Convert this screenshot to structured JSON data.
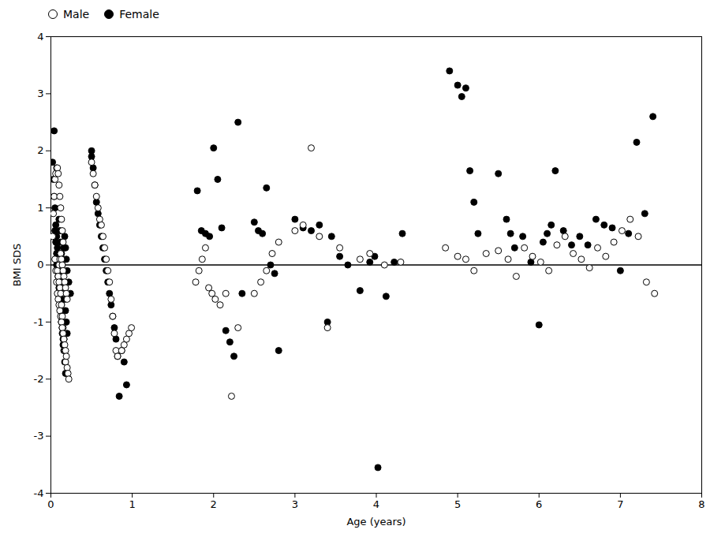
{
  "chart_data": {
    "type": "scatter",
    "xlabel": "Age (years)",
    "ylabel": "BMI SDS",
    "xlim": [
      0,
      8
    ],
    "ylim": [
      -4,
      4
    ],
    "xticks": [
      0,
      1,
      2,
      3,
      4,
      5,
      6,
      7,
      8
    ],
    "yticks": [
      -4,
      -3,
      -2,
      -1,
      0,
      1,
      2,
      3,
      4
    ],
    "hline_y": 0,
    "legend": "upper left",
    "grid": false,
    "series": [
      {
        "name": "Male",
        "color": "white",
        "marker": "circle",
        "x": [
          0.02,
          0.03,
          0.04,
          0.05,
          0.06,
          0.07,
          0.08,
          0.09,
          0.1,
          0.11,
          0.12,
          0.13,
          0.14,
          0.15,
          0.05,
          0.06,
          0.07,
          0.08,
          0.09,
          0.1,
          0.11,
          0.12,
          0.13,
          0.14,
          0.15,
          0.16,
          0.08,
          0.09,
          0.1,
          0.11,
          0.12,
          0.13,
          0.14,
          0.15,
          0.16,
          0.17,
          0.18,
          0.1,
          0.11,
          0.12,
          0.13,
          0.14,
          0.15,
          0.16,
          0.17,
          0.18,
          0.19,
          0.2,
          0.13,
          0.14,
          0.15,
          0.16,
          0.17,
          0.18,
          0.19,
          0.2,
          0.21,
          0.22,
          0.5,
          0.52,
          0.54,
          0.56,
          0.58,
          0.6,
          0.62,
          0.64,
          0.66,
          0.68,
          0.7,
          0.72,
          0.74,
          0.76,
          0.78,
          0.8,
          0.82,
          0.87,
          0.9,
          0.93,
          0.96,
          0.99,
          1.78,
          1.82,
          1.86,
          1.9,
          1.94,
          1.98,
          2.02,
          2.08,
          2.15,
          2.22,
          2.3,
          2.5,
          2.58,
          2.65,
          2.72,
          2.8,
          3.0,
          3.1,
          3.2,
          3.3,
          3.4,
          3.55,
          3.8,
          3.92,
          4.1,
          4.3,
          4.85,
          5.0,
          5.1,
          5.2,
          5.35,
          5.5,
          5.62,
          5.72,
          5.82,
          5.92,
          6.02,
          6.12,
          6.22,
          6.32,
          6.42,
          6.52,
          6.62,
          6.72,
          6.82,
          6.92,
          7.02,
          7.12,
          7.22,
          7.32,
          7.42
        ],
        "values": [
          0.5,
          0.9,
          1.2,
          1.5,
          1.6,
          1.7,
          1.7,
          1.6,
          1.4,
          1.2,
          1.0,
          0.8,
          0.6,
          0.4,
          0.1,
          -0.1,
          -0.3,
          -0.5,
          -0.6,
          -0.7,
          -0.8,
          -0.9,
          -1.0,
          -1.1,
          -1.2,
          -1.3,
          -0.1,
          -0.2,
          -0.3,
          -0.4,
          -0.5,
          -0.7,
          -0.9,
          -1.1,
          -1.3,
          -1.5,
          -1.7,
          0.0,
          0.1,
          0.2,
          0.1,
          0.0,
          -0.1,
          -0.2,
          -0.3,
          -0.4,
          -0.5,
          -0.6,
          -1.0,
          -1.1,
          -1.2,
          -1.3,
          -1.4,
          -1.5,
          -1.6,
          -1.8,
          -1.9,
          -2.0,
          1.8,
          1.6,
          1.4,
          1.2,
          1.0,
          0.8,
          0.7,
          0.5,
          0.3,
          0.1,
          -0.1,
          -0.3,
          -0.6,
          -0.9,
          -1.2,
          -1.5,
          -1.6,
          -1.5,
          -1.4,
          -1.3,
          -1.2,
          -1.1,
          -0.3,
          -0.1,
          0.1,
          0.3,
          -0.4,
          -0.5,
          -0.6,
          -0.7,
          -0.5,
          -2.3,
          -1.1,
          -0.5,
          -0.3,
          -0.1,
          0.2,
          0.4,
          0.6,
          0.7,
          2.05,
          0.5,
          -1.1,
          0.3,
          0.1,
          0.2,
          0.0,
          0.05,
          0.3,
          0.15,
          0.1,
          -0.1,
          0.2,
          0.25,
          0.1,
          -0.2,
          0.3,
          0.15,
          0.05,
          -0.1,
          0.35,
          0.5,
          0.2,
          0.1,
          -0.05,
          0.3,
          0.15,
          0.4,
          0.6,
          0.8,
          0.5,
          -0.3,
          -0.5
        ]
      },
      {
        "name": "Female",
        "color": "black",
        "marker": "circle",
        "x": [
          0.02,
          0.03,
          0.04,
          0.05,
          0.06,
          0.07,
          0.08,
          0.09,
          0.1,
          0.11,
          0.12,
          0.13,
          0.04,
          0.05,
          0.06,
          0.07,
          0.08,
          0.09,
          0.1,
          0.11,
          0.12,
          0.13,
          0.14,
          0.15,
          0.07,
          0.08,
          0.09,
          0.1,
          0.11,
          0.12,
          0.13,
          0.14,
          0.15,
          0.16,
          0.17,
          0.18,
          0.1,
          0.11,
          0.12,
          0.13,
          0.14,
          0.15,
          0.16,
          0.17,
          0.18,
          0.19,
          0.2,
          0.13,
          0.14,
          0.15,
          0.16,
          0.17,
          0.18,
          0.19,
          0.2,
          0.22,
          0.24,
          0.5,
          0.52,
          0.54,
          0.56,
          0.58,
          0.6,
          0.62,
          0.64,
          0.66,
          0.68,
          0.7,
          0.72,
          0.74,
          0.76,
          0.78,
          0.8,
          0.82,
          0.84,
          0.87,
          0.9,
          0.93,
          0.5,
          1.8,
          1.85,
          1.9,
          1.95,
          2.0,
          2.05,
          2.1,
          2.15,
          2.2,
          2.25,
          2.3,
          2.35,
          2.5,
          2.55,
          2.6,
          2.65,
          2.7,
          2.75,
          2.8,
          3.0,
          3.1,
          3.2,
          3.3,
          3.45,
          3.55,
          3.65,
          3.4,
          3.8,
          3.92,
          4.02,
          4.12,
          4.22,
          4.32,
          3.98,
          4.9,
          5.0,
          5.05,
          5.1,
          5.15,
          5.2,
          5.25,
          5.5,
          5.6,
          5.65,
          5.7,
          5.8,
          5.9,
          6.0,
          6.05,
          6.1,
          6.15,
          6.2,
          6.3,
          6.4,
          6.5,
          6.6,
          6.7,
          6.8,
          6.9,
          7.0,
          7.1,
          7.2,
          7.3,
          7.4
        ],
        "values": [
          1.8,
          1.5,
          1.2,
          1.0,
          0.7,
          0.5,
          0.3,
          0.1,
          -0.1,
          -0.3,
          -0.5,
          -0.7,
          2.35,
          0.6,
          0.4,
          0.2,
          0.0,
          -0.2,
          -0.4,
          -0.6,
          -0.8,
          -1.0,
          -1.2,
          -1.4,
          0.0,
          -0.1,
          -0.2,
          -0.3,
          -0.5,
          -0.7,
          -0.9,
          -1.1,
          -1.3,
          -1.5,
          -1.7,
          -1.9,
          0.8,
          0.6,
          0.4,
          0.2,
          0.0,
          -0.2,
          -0.4,
          -0.6,
          -0.8,
          -1.0,
          -1.2,
          -0.3,
          -0.1,
          0.1,
          0.3,
          0.5,
          0.3,
          0.1,
          -0.1,
          -0.3,
          -0.5,
          2.0,
          1.7,
          1.4,
          1.1,
          0.9,
          0.7,
          0.5,
          0.3,
          0.1,
          -0.1,
          -0.3,
          -0.5,
          -0.7,
          -0.9,
          -1.1,
          -1.3,
          -1.6,
          -2.3,
          -1.5,
          -1.7,
          -2.1,
          1.9,
          1.3,
          0.6,
          0.55,
          0.5,
          2.05,
          1.5,
          0.65,
          -1.15,
          -1.35,
          -1.6,
          2.5,
          -0.5,
          0.75,
          0.6,
          0.55,
          1.35,
          0.0,
          -0.15,
          -1.5,
          0.8,
          0.65,
          0.6,
          0.7,
          0.5,
          0.15,
          0.0,
          -1.0,
          -0.45,
          0.05,
          -3.55,
          -0.55,
          0.05,
          0.55,
          0.15,
          3.4,
          3.15,
          2.95,
          3.1,
          1.65,
          1.1,
          0.55,
          1.6,
          0.8,
          0.55,
          0.3,
          0.5,
          0.05,
          -1.05,
          0.4,
          0.55,
          0.7,
          1.65,
          0.6,
          0.35,
          0.5,
          0.35,
          0.8,
          0.7,
          0.65,
          -0.1,
          0.55,
          2.15,
          0.9,
          2.6
        ]
      }
    ]
  }
}
